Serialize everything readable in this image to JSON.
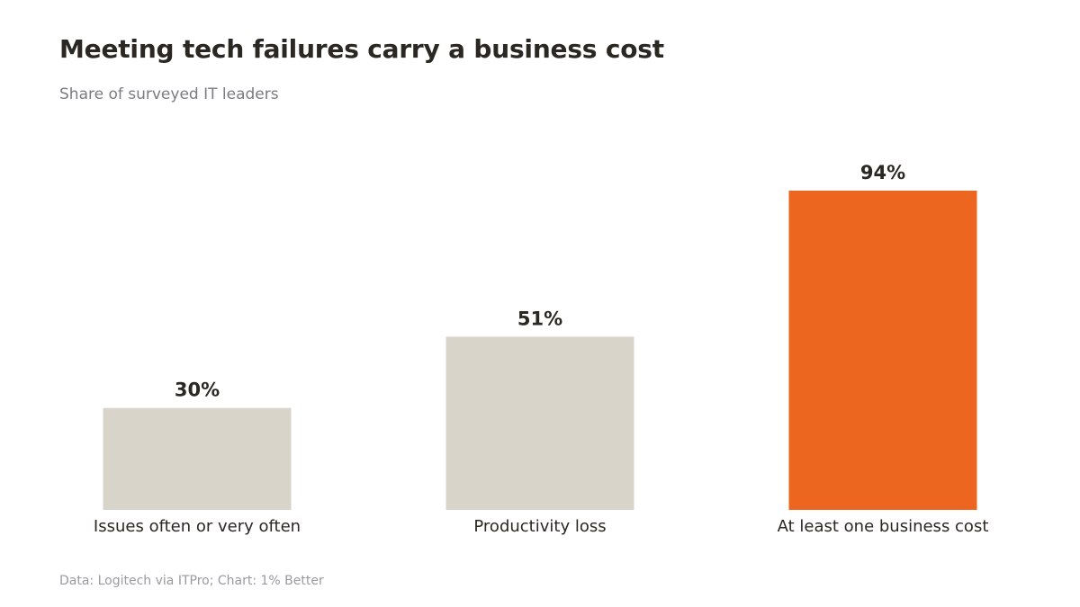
{
  "header": {
    "title": "Meeting tech failures carry a business cost",
    "subtitle": "Share of surveyed IT leaders"
  },
  "footer": {
    "source": "Data: Logitech via ITPro; Chart: 1% Better"
  },
  "colors": {
    "muted_bar": "#d9d4c9",
    "highlight_bar": "#ec661f",
    "text": "#2b2722"
  },
  "chart_data": {
    "type": "bar",
    "categories": [
      "Issues often or very often",
      "Productivity loss",
      "At least one business cost"
    ],
    "values": [
      30,
      51,
      94
    ],
    "value_labels": [
      "30%",
      "51%",
      "94%"
    ],
    "highlight": [
      false,
      false,
      true
    ],
    "title": "Meeting tech failures carry a business cost",
    "subtitle": "Share of surveyed IT leaders",
    "xlabel": "",
    "ylabel": "",
    "ylim": [
      0,
      94
    ],
    "grid": false,
    "legend": "none"
  }
}
